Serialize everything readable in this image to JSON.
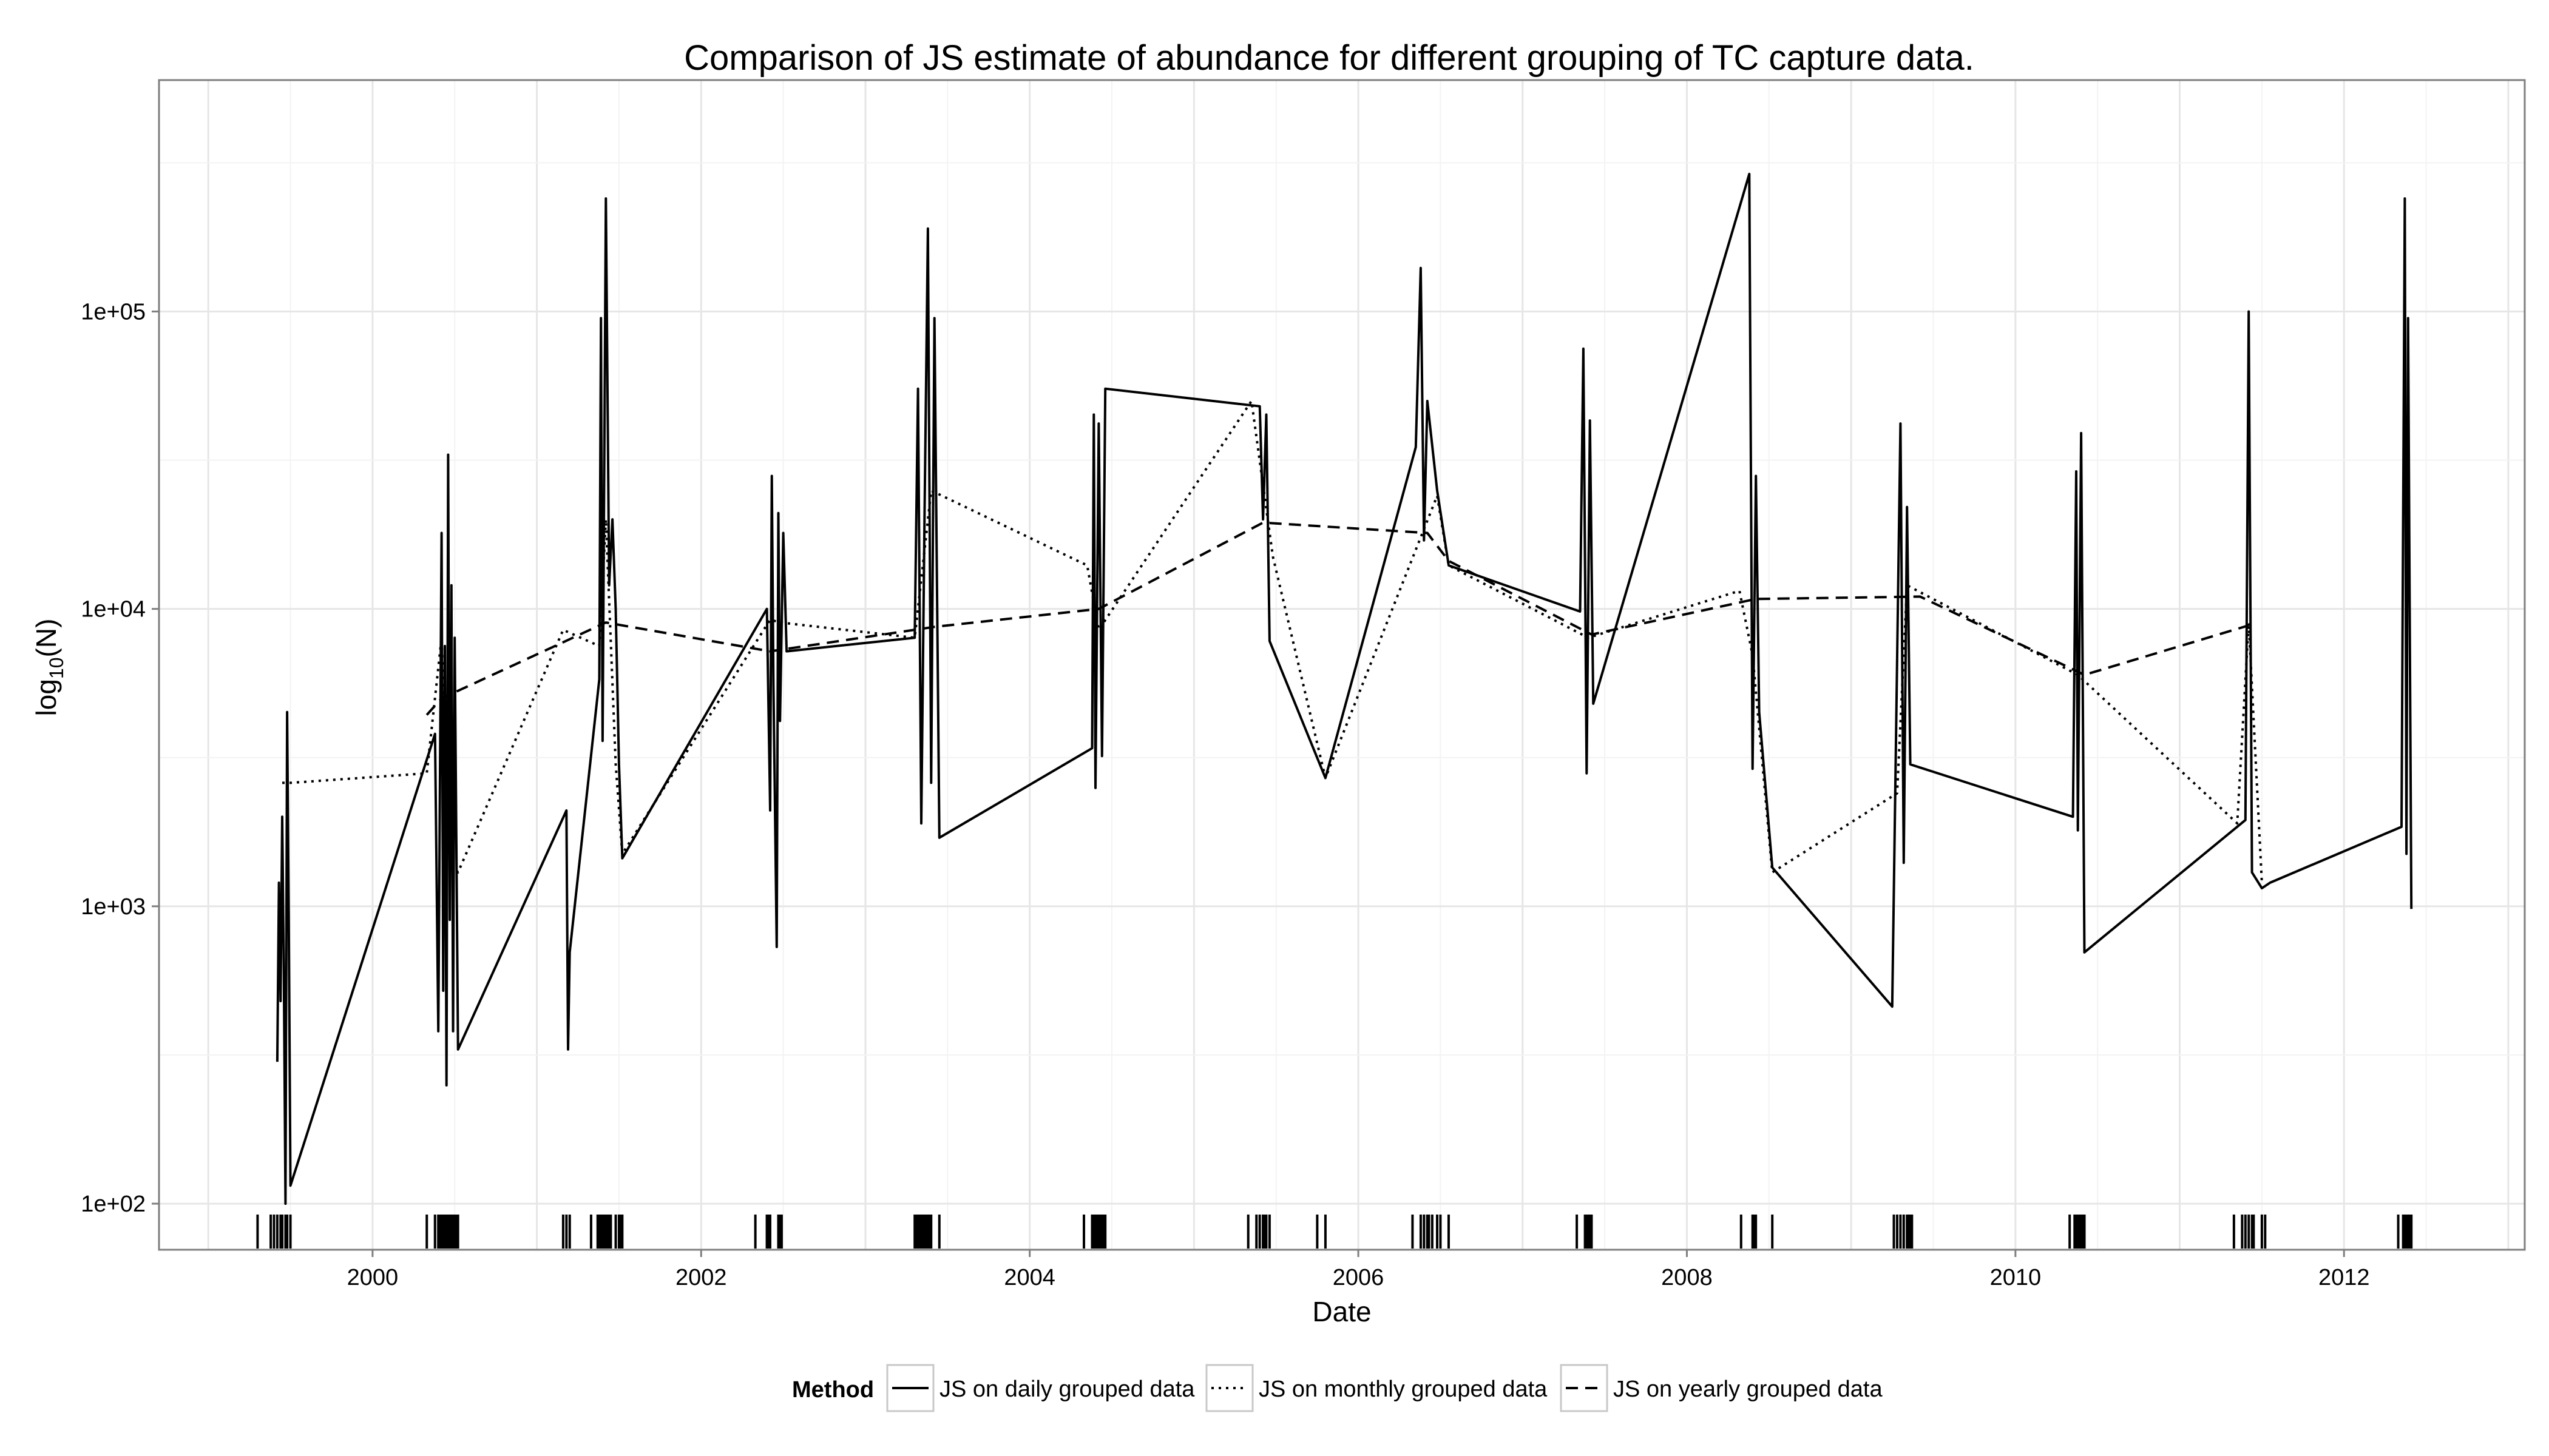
{
  "chart_data": {
    "type": "line",
    "title": "Comparison of JS estimate of abundance for different grouping of TC capture data.",
    "xlabel": "Date",
    "ylabel_main": "log",
    "ylabel_sub": "10",
    "ylabel_tail": "(N)",
    "x_scale": "date (years)",
    "y_scale": "log10",
    "xlim": [
      1998.7,
      2013.1
    ],
    "ylim": [
      70,
      600000
    ],
    "x_ticks": [
      2000,
      2002,
      2004,
      2006,
      2008,
      2010,
      2012
    ],
    "x_tick_labels": [
      "2000",
      "2002",
      "2004",
      "2006",
      "2008",
      "2010",
      "2012"
    ],
    "y_ticks": [
      100,
      1000,
      10000,
      100000
    ],
    "y_tick_labels": [
      "1e+02",
      "1e+03",
      "1e+04",
      "1e+05"
    ],
    "grid": true,
    "legend_position": "bottom",
    "legend_title": "Method",
    "series": [
      {
        "name": "JS on daily grouped data",
        "style": "solid",
        "points": [
          [
            1999.42,
            300
          ],
          [
            1999.43,
            1200
          ],
          [
            1999.44,
            480
          ],
          [
            1999.45,
            2000
          ],
          [
            1999.46,
            600
          ],
          [
            1999.47,
            100
          ],
          [
            1999.48,
            4500
          ],
          [
            1999.49,
            900
          ],
          [
            1999.5,
            115
          ],
          [
            2000.38,
            3800
          ],
          [
            2000.4,
            380
          ],
          [
            2000.42,
            18000
          ],
          [
            2000.43,
            520
          ],
          [
            2000.44,
            7500
          ],
          [
            2000.45,
            250
          ],
          [
            2000.46,
            33000
          ],
          [
            2000.47,
            900
          ],
          [
            2000.48,
            12000
          ],
          [
            2000.49,
            380
          ],
          [
            2000.5,
            8000
          ],
          [
            2000.52,
            330
          ],
          [
            2001.18,
            2100
          ],
          [
            2001.19,
            330
          ],
          [
            2001.2,
            700
          ],
          [
            2001.38,
            5800
          ],
          [
            2001.39,
            95000
          ],
          [
            2001.4,
            3600
          ],
          [
            2001.42,
            240000
          ],
          [
            2001.44,
            12000
          ],
          [
            2001.46,
            20000
          ],
          [
            2001.48,
            10000
          ],
          [
            2001.5,
            3000
          ],
          [
            2001.52,
            1450
          ],
          [
            2002.4,
            10000
          ],
          [
            2002.42,
            2100
          ],
          [
            2002.43,
            28000
          ],
          [
            2002.44,
            5600
          ],
          [
            2002.46,
            730
          ],
          [
            2002.47,
            21000
          ],
          [
            2002.48,
            4200
          ],
          [
            2002.5,
            18000
          ],
          [
            2002.52,
            7200
          ],
          [
            2003.3,
            8000
          ],
          [
            2003.32,
            55000
          ],
          [
            2003.34,
            1900
          ],
          [
            2003.36,
            21000
          ],
          [
            2003.38,
            190000
          ],
          [
            2003.4,
            2600
          ],
          [
            2003.42,
            95000
          ],
          [
            2003.45,
            1700
          ],
          [
            2004.38,
            3400
          ],
          [
            2004.39,
            45000
          ],
          [
            2004.4,
            2500
          ],
          [
            2004.42,
            42000
          ],
          [
            2004.44,
            3200
          ],
          [
            2004.46,
            55000
          ],
          [
            2005.4,
            48000
          ],
          [
            2005.42,
            20000
          ],
          [
            2005.44,
            45000
          ],
          [
            2005.46,
            7800
          ],
          [
            2005.8,
            2700
          ],
          [
            2006.35,
            35000
          ],
          [
            2006.38,
            140000
          ],
          [
            2006.4,
            17000
          ],
          [
            2006.42,
            50000
          ],
          [
            2006.48,
            25000
          ],
          [
            2006.55,
            14000
          ],
          [
            2007.35,
            9800
          ],
          [
            2007.37,
            75000
          ],
          [
            2007.39,
            2800
          ],
          [
            2007.41,
            43000
          ],
          [
            2007.43,
            4800
          ],
          [
            2008.38,
            290000
          ],
          [
            2008.4,
            2900
          ],
          [
            2008.42,
            28000
          ],
          [
            2008.44,
            4500
          ],
          [
            2008.52,
            1350
          ],
          [
            2009.25,
            460
          ],
          [
            2009.3,
            42000
          ],
          [
            2009.32,
            1400
          ],
          [
            2009.34,
            22000
          ],
          [
            2009.36,
            3000
          ],
          [
            2010.35,
            2000
          ],
          [
            2010.37,
            29000
          ],
          [
            2010.38,
            1800
          ],
          [
            2010.4,
            39000
          ],
          [
            2010.42,
            700
          ],
          [
            2011.4,
            1950
          ],
          [
            2011.42,
            100000
          ],
          [
            2011.44,
            1300
          ],
          [
            2011.5,
            1150
          ],
          [
            2011.55,
            1200
          ],
          [
            2012.35,
            1850
          ],
          [
            2012.37,
            240000
          ],
          [
            2012.38,
            1500
          ],
          [
            2012.39,
            95000
          ],
          [
            2012.41,
            980
          ]
        ]
      },
      {
        "name": "JS on monthly grouped data",
        "style": "dotted",
        "points": [
          [
            1999.45,
            2600
          ],
          [
            1999.5,
            2600
          ],
          [
            2000.33,
            2800
          ],
          [
            2000.42,
            8000
          ],
          [
            2000.47,
            1400
          ],
          [
            2000.52,
            1300
          ],
          [
            2001.16,
            8500
          ],
          [
            2001.38,
            7500
          ],
          [
            2001.42,
            20000
          ],
          [
            2001.48,
            3000
          ],
          [
            2001.52,
            1500
          ],
          [
            2002.42,
            9200
          ],
          [
            2002.48,
            9000
          ],
          [
            2003.3,
            8000
          ],
          [
            2003.4,
            25000
          ],
          [
            2004.35,
            14000
          ],
          [
            2004.42,
            8500
          ],
          [
            2005.35,
            50000
          ],
          [
            2005.48,
            15000
          ],
          [
            2005.8,
            2700
          ],
          [
            2006.48,
            24000
          ],
          [
            2006.55,
            14000
          ],
          [
            2007.4,
            8000
          ],
          [
            2008.32,
            11500
          ],
          [
            2008.4,
            7000
          ],
          [
            2008.52,
            1300
          ],
          [
            2009.28,
            2400
          ],
          [
            2009.34,
            12000
          ],
          [
            2010.38,
            6000
          ],
          [
            2011.35,
            1900
          ],
          [
            2011.42,
            9000
          ],
          [
            2011.5,
            1200
          ]
        ]
      },
      {
        "name": "JS on yearly grouped data",
        "style": "dashed",
        "points": [
          [
            2000.33,
            4400
          ],
          [
            2000.42,
            5000
          ],
          [
            2001.42,
            9000
          ],
          [
            2002.42,
            7200
          ],
          [
            2003.42,
            8700
          ],
          [
            2004.42,
            10000
          ],
          [
            2005.42,
            19500
          ],
          [
            2006.42,
            18000
          ],
          [
            2006.55,
            14500
          ],
          [
            2007.42,
            8200
          ],
          [
            2008.42,
            10800
          ],
          [
            2009.42,
            11000
          ],
          [
            2010.42,
            6000
          ],
          [
            2011.42,
            8800
          ]
        ]
      }
    ],
    "rug": [
      1999.3,
      1999.38,
      1999.4,
      1999.42,
      1999.44,
      1999.45,
      1999.47,
      1999.48,
      1999.5,
      2000.33,
      2000.38,
      2000.4,
      2000.41,
      2000.42,
      2000.43,
      2000.44,
      2000.45,
      2000.46,
      2000.47,
      2000.48,
      2000.49,
      2000.5,
      2000.51,
      2000.52,
      2001.16,
      2001.18,
      2001.2,
      2001.33,
      2001.37,
      2001.38,
      2001.39,
      2001.4,
      2001.41,
      2001.42,
      2001.43,
      2001.44,
      2001.45,
      2001.48,
      2001.5,
      2001.51,
      2001.52,
      2002.33,
      2002.4,
      2002.41,
      2002.42,
      2002.47,
      2002.48,
      2002.49,
      2003.3,
      2003.31,
      2003.32,
      2003.33,
      2003.34,
      2003.35,
      2003.36,
      2003.37,
      2003.38,
      2003.39,
      2003.4,
      2003.45,
      2004.33,
      2004.38,
      2004.39,
      2004.4,
      2004.41,
      2004.42,
      2004.43,
      2004.44,
      2004.45,
      2004.46,
      2005.33,
      2005.38,
      2005.4,
      2005.42,
      2005.43,
      2005.44,
      2005.46,
      2005.75,
      2005.8,
      2006.33,
      2006.38,
      2006.4,
      2006.42,
      2006.43,
      2006.45,
      2006.48,
      2006.5,
      2006.55,
      2007.33,
      2007.38,
      2007.39,
      2007.4,
      2007.41,
      2007.42,
      2008.33,
      2008.4,
      2008.41,
      2008.42,
      2008.52,
      2009.26,
      2009.28,
      2009.3,
      2009.32,
      2009.34,
      2009.35,
      2009.36,
      2009.37,
      2010.33,
      2010.36,
      2010.37,
      2010.38,
      2010.39,
      2010.4,
      2010.41,
      2010.42,
      2011.33,
      2011.38,
      2011.4,
      2011.42,
      2011.44,
      2011.45,
      2011.5,
      2011.52,
      2012.33,
      2012.36,
      2012.37,
      2012.38,
      2012.39,
      2012.4,
      2012.41
    ],
    "colors": {
      "line": "#000000",
      "grid": "#ebebeb",
      "panel_border": "#7f7f7f",
      "background": "#ffffff",
      "axis_tick": "#7f7f7f"
    }
  }
}
